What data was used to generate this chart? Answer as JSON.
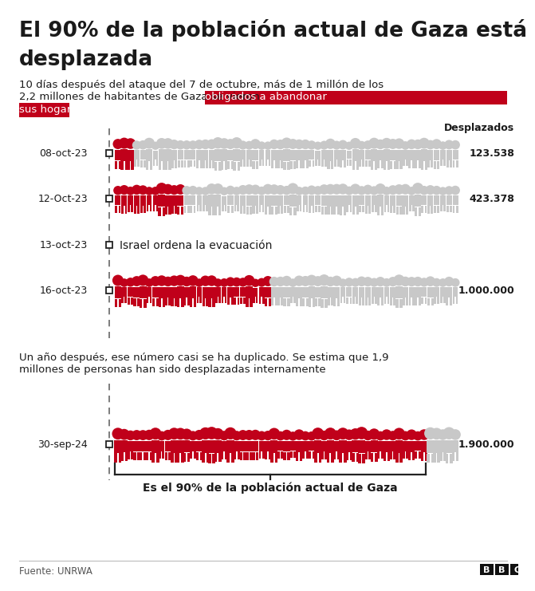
{
  "title_line1": "El 90% de la población actual de Gaza está",
  "title_line2": "desplazada",
  "sub_part1": "10 días después del ataque del 7 de octubre, más de 1 millón de los",
  "sub_part2_normal": "2,2 millones de habitantes de Gaza se vieron ",
  "sub_part2_highlight1": "obligados a abandonar",
  "sub_part3_highlight2": "sus hogares",
  "col_label": "Desplazados",
  "rows": [
    {
      "date": "08-oct-23",
      "value": 123538,
      "label": "123.538",
      "total": 2200000,
      "is_event": false
    },
    {
      "date": "12-Oct-23",
      "value": 423378,
      "label": "423.378",
      "total": 2200000,
      "is_event": false
    },
    {
      "date": "13-oct-23",
      "value": 0,
      "label": "Israel ordena la evacuación",
      "total": 2200000,
      "is_event": true
    },
    {
      "date": "16-oct-23",
      "value": 1000000,
      "label": "1.000.000",
      "total": 2200000,
      "is_event": false
    }
  ],
  "mid_text_line1": "Un año después, ese número casi se ha duplicado. Se estima que 1,9",
  "mid_text_line2": "millones de personas han sido desplazadas internamente",
  "sep_row": {
    "date": "30-sep-24",
    "value": 1900000,
    "label": "1.900.000",
    "total": 2100000,
    "bracket_label": "Es el 90% de la población actual de Gaza"
  },
  "source": "Fuente: UNRWA",
  "bg_color": "#ffffff",
  "title_color": "#1a1a1a",
  "red_color": "#c0001a",
  "gray_color": "#c8c8c8",
  "dark_color": "#222222",
  "highlight_bg": "#c0001a",
  "highlight_fg": "#ffffff",
  "dashed_color": "#666666"
}
